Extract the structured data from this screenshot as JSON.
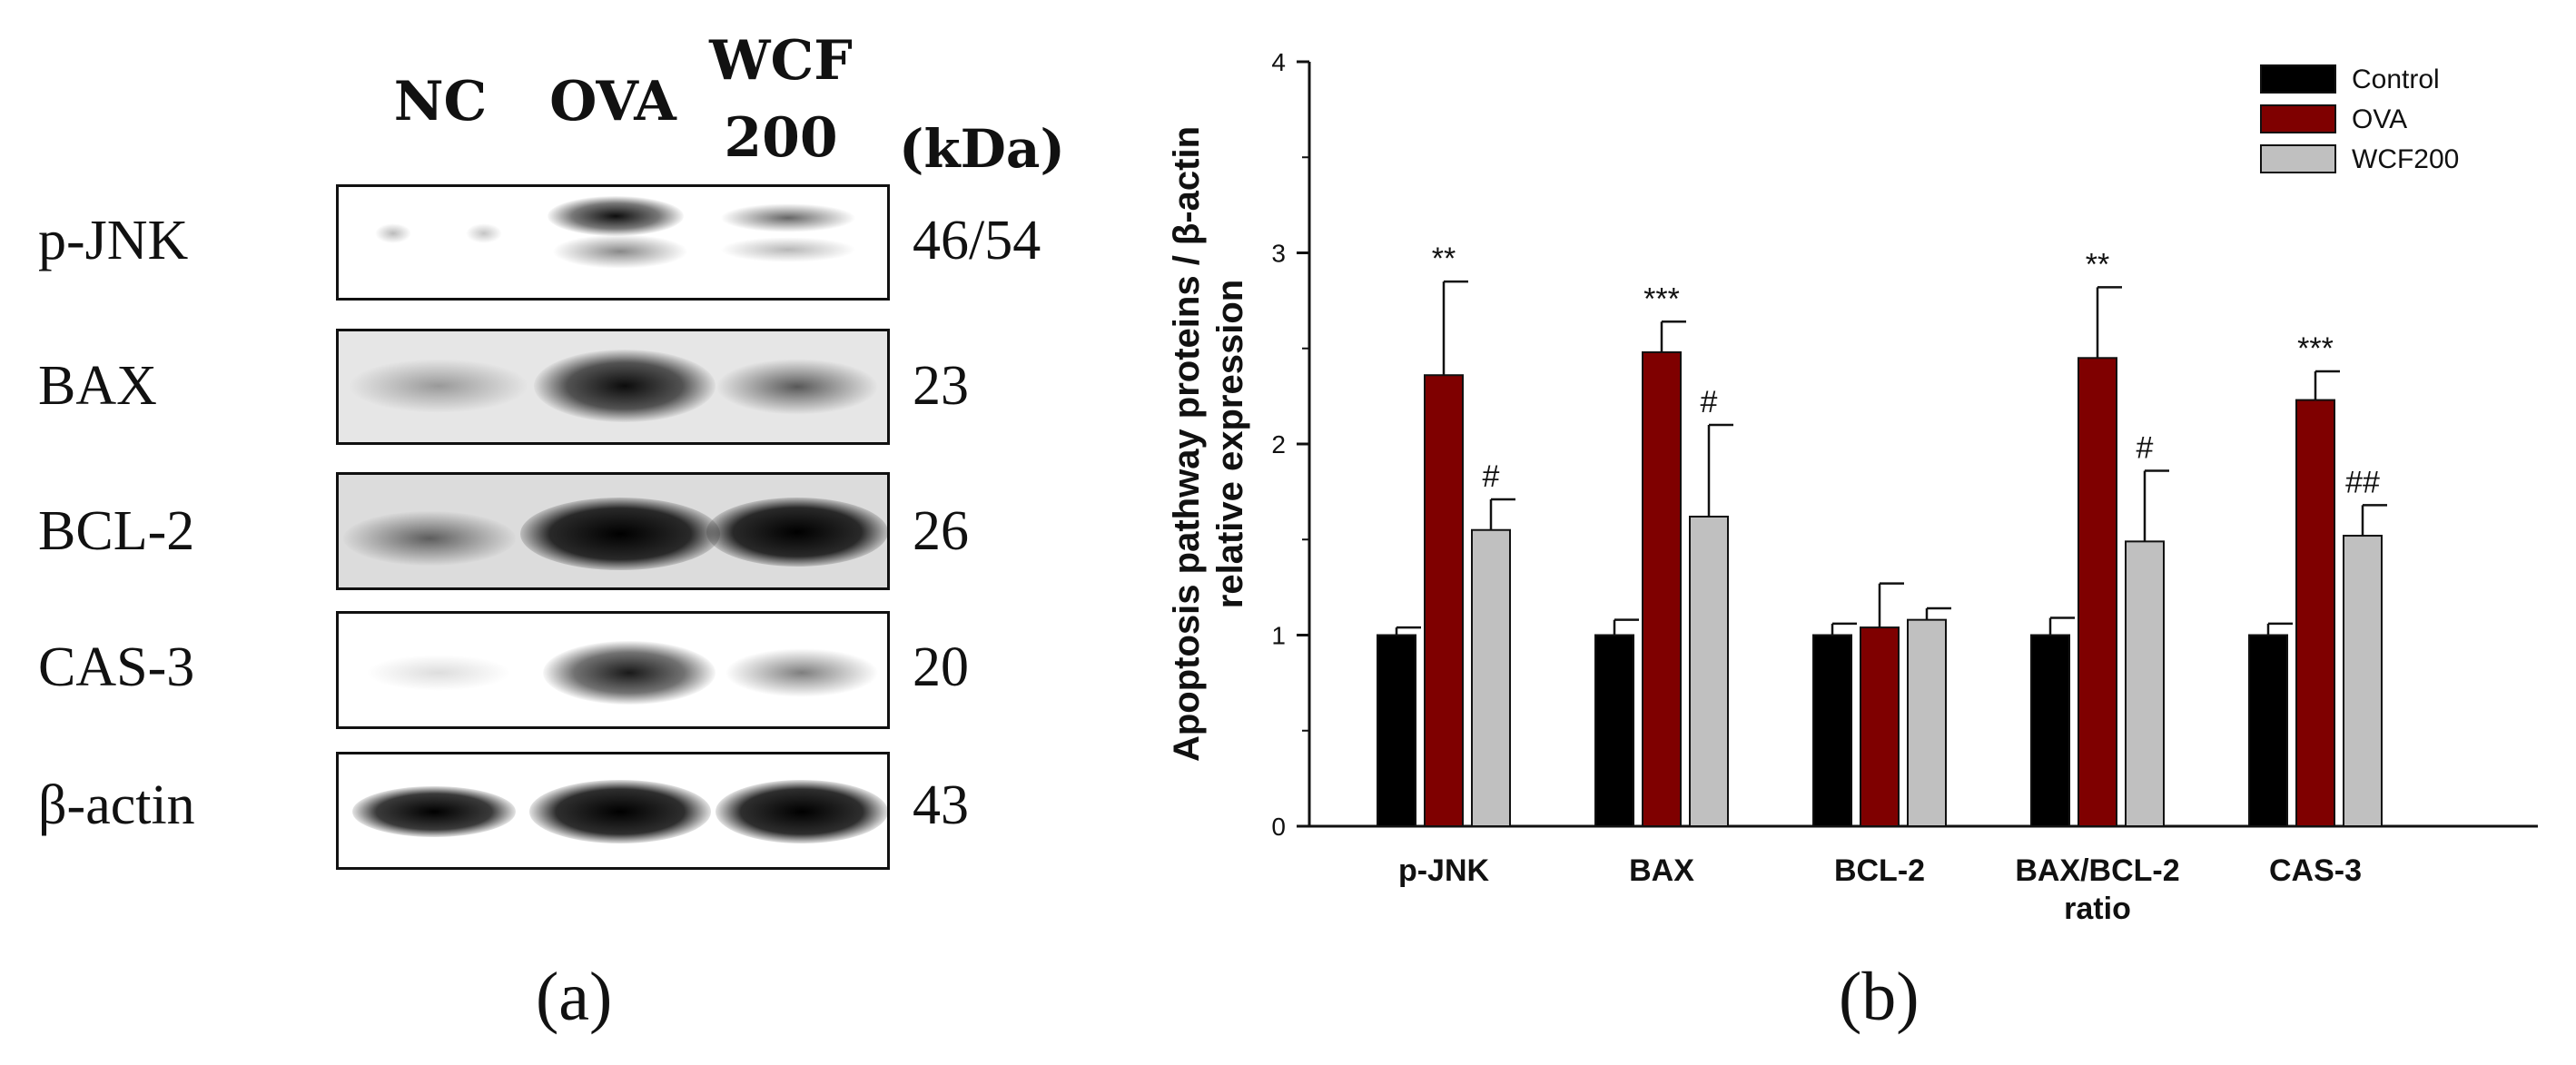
{
  "panel_a": {
    "lanes": [
      "NC",
      "OVA",
      "WCF",
      "200"
    ],
    "kda_label": "(kDa)",
    "rows": [
      {
        "protein": "p-JNK",
        "mw": "46/54"
      },
      {
        "protein": "BAX",
        "mw": "23"
      },
      {
        "protein": "BCL-2",
        "mw": "26"
      },
      {
        "protein": "CAS-3",
        "mw": "20"
      },
      {
        "protein": "β-actin",
        "mw": "43"
      }
    ],
    "caption": "(a)"
  },
  "panel_b": {
    "caption": "(b)"
  },
  "chart_data": {
    "type": "bar",
    "categories": [
      "p-JNK",
      "BAX",
      "BCL-2",
      "BAX/BCL-2 ratio",
      "CAS-3"
    ],
    "category_lines": [
      [
        "p-JNK"
      ],
      [
        "BAX"
      ],
      [
        "BCL-2"
      ],
      [
        "BAX/BCL-2",
        "ratio"
      ],
      [
        "CAS-3"
      ]
    ],
    "series": [
      {
        "name": "Control",
        "color": "#000000",
        "values": [
          1.0,
          1.0,
          1.0,
          1.0,
          1.0
        ],
        "errors": [
          0.04,
          0.08,
          0.06,
          0.09,
          0.06
        ],
        "sig": [
          "",
          "",
          "",
          "",
          ""
        ]
      },
      {
        "name": "OVA",
        "color": "#7f0000",
        "values": [
          2.36,
          2.48,
          1.04,
          2.45,
          2.23
        ],
        "errors": [
          0.49,
          0.16,
          0.23,
          0.37,
          0.15
        ],
        "sig": [
          "**",
          "***",
          "",
          "**",
          "***"
        ]
      },
      {
        "name": "WCF200",
        "color": "#c0c0c0",
        "values": [
          1.55,
          1.62,
          1.08,
          1.49,
          1.52
        ],
        "errors": [
          0.16,
          0.48,
          0.06,
          0.37,
          0.16
        ],
        "sig": [
          "#",
          "#",
          "",
          "#",
          "##"
        ]
      }
    ],
    "ylabel_lines": [
      "Apoptosis pathway proteins / β-actin",
      "relative expression"
    ],
    "ylim": [
      0,
      4
    ],
    "yticks": [
      0,
      1,
      2,
      3,
      4
    ],
    "xlabel": "",
    "legend_position": "top-right",
    "grid": false
  }
}
